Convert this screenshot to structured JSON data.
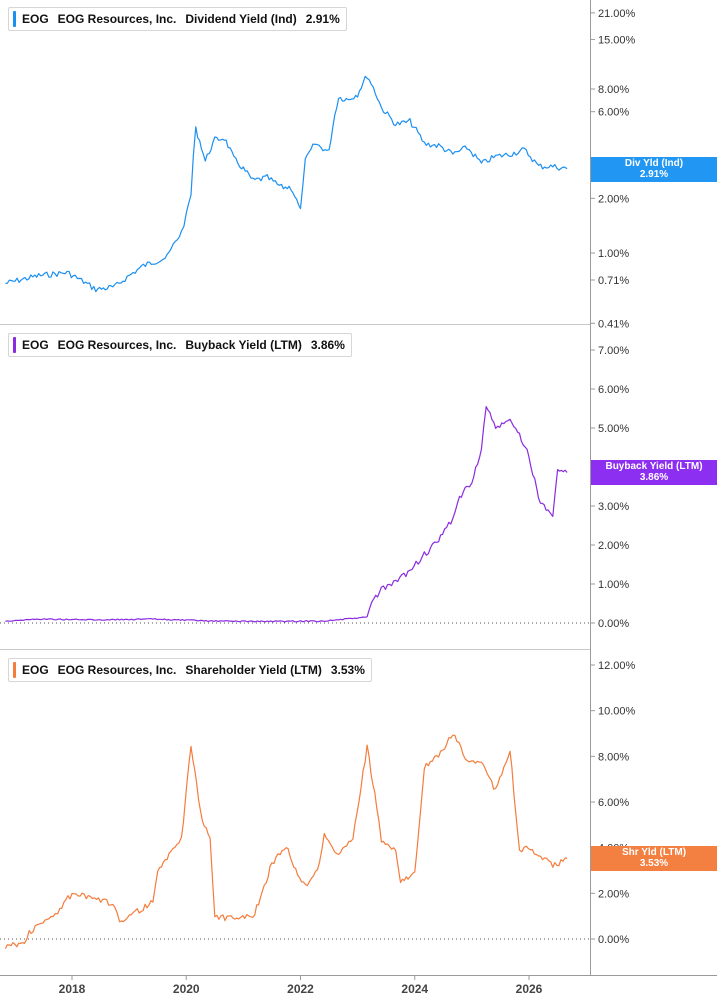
{
  "panels": [
    {
      "ticker": "EOG",
      "company": "EOG Resources, Inc.",
      "metric": "Dividend Yield (Ind)",
      "value": "2.91%",
      "tag_label": "Div Yld (Ind)",
      "tag_value": "2.91%",
      "color": "#1b8ff2",
      "tag_color": "#2196f3"
    },
    {
      "ticker": "EOG",
      "company": "EOG Resources, Inc.",
      "metric": "Buyback Yield (LTM)",
      "value": "3.86%",
      "tag_label": "Buyback Yield (LTM)",
      "tag_value": "3.86%",
      "color": "#8a2be2",
      "tag_color": "#8c2ff0"
    },
    {
      "ticker": "EOG",
      "company": "EOG Resources, Inc.",
      "metric": "Shareholder Yield (LTM)",
      "value": "3.53%",
      "tag_label": "Shr Yld (LTM)",
      "tag_value": "3.53%",
      "color": "#f47c3c",
      "tag_color": "#f37f40"
    }
  ],
  "chart_data": [
    {
      "type": "line",
      "title": "EOG  EOG Resources, Inc.  Dividend Yield (Ind)  2.91%",
      "series_label": "Dividend Yield (Ind)",
      "y_scale": "log",
      "y_ticks": [
        "21.00%",
        "15.00%",
        "8.00%",
        "6.00%",
        "2.00%",
        "1.00%",
        "0.71%",
        "0.41%"
      ],
      "y_tick_values": [
        21,
        15,
        8,
        6,
        2,
        1,
        0.71,
        0.41
      ],
      "x": [
        "2016-11",
        "2017-06",
        "2017-12",
        "2018-06",
        "2018-10",
        "2019-04",
        "2019-09",
        "2019-12",
        "2020-01",
        "2020-02",
        "2020-03",
        "2020-05",
        "2020-07",
        "2020-09",
        "2020-11",
        "2021-03",
        "2021-06",
        "2021-09",
        "2021-11",
        "2022-01",
        "2022-02",
        "2022-04",
        "2022-07",
        "2022-09",
        "2022-11",
        "2023-01",
        "2023-03",
        "2023-06",
        "2023-09",
        "2023-12",
        "2024-03",
        "2024-06",
        "2024-09",
        "2024-12",
        "2025-03",
        "2025-06",
        "2025-09",
        "2025-12",
        "2026-03",
        "2026-06",
        "2026-09"
      ],
      "y": [
        0.68,
        0.75,
        0.78,
        0.63,
        0.65,
        0.85,
        0.95,
        1.3,
        1.6,
        2.1,
        4.8,
        3.2,
        4.2,
        4.3,
        3.3,
        2.5,
        2.6,
        2.3,
        2.3,
        1.7,
        3.2,
        4.0,
        3.6,
        7.2,
        7.0,
        7.5,
        9.5,
        6.3,
        5.1,
        5.3,
        4.0,
        3.9,
        3.5,
        3.8,
        3.1,
        3.4,
        3.5,
        3.7,
        3.0,
        3.0,
        2.91
      ]
    },
    {
      "type": "line",
      "title": "EOG  EOG Resources, Inc.  Buyback Yield (LTM)  3.86%",
      "series_label": "Buyback Yield (LTM)",
      "ylim": [
        0,
        7
      ],
      "y_ticks": [
        "7.00%",
        "6.00%",
        "5.00%",
        "4.00%",
        "3.00%",
        "2.00%",
        "1.00%",
        "0.00%"
      ],
      "x": [
        "2016-11",
        "2017-06",
        "2018-06",
        "2019-06",
        "2020-06",
        "2021-06",
        "2022-06",
        "2023-03",
        "2023-04",
        "2023-06",
        "2023-09",
        "2023-12",
        "2024-03",
        "2024-06",
        "2024-09",
        "2024-10",
        "2024-12",
        "2025-01",
        "2025-03",
        "2025-04",
        "2025-06",
        "2025-09",
        "2025-11",
        "2026-01",
        "2026-03",
        "2026-05",
        "2026-06",
        "2026-07",
        "2026-09"
      ],
      "y": [
        0.05,
        0.1,
        0.08,
        0.1,
        0.05,
        0.04,
        0.05,
        0.15,
        0.55,
        0.85,
        1.05,
        1.35,
        1.75,
        2.1,
        2.7,
        3.1,
        3.5,
        3.55,
        4.5,
        5.55,
        5.0,
        5.2,
        4.8,
        4.3,
        3.2,
        2.85,
        2.8,
        4.0,
        3.86
      ]
    },
    {
      "type": "line",
      "title": "EOG  EOG Resources, Inc.  Shareholder Yield (LTM)  3.53%",
      "series_label": "Shareholder Yield (LTM)",
      "ylim": [
        -1.5,
        12.5
      ],
      "y_ticks": [
        "12.00%",
        "10.00%",
        "8.00%",
        "6.00%",
        "4.00%",
        "2.00%",
        "0.00%"
      ],
      "x": [
        "2016-11",
        "2017-03",
        "2017-04",
        "2017-09",
        "2017-10",
        "2018-01",
        "2018-10",
        "2018-11",
        "2019-06",
        "2019-07",
        "2019-11",
        "2019-12",
        "2020-02",
        "2020-04",
        "2020-06",
        "2020-07",
        "2020-10",
        "2020-12",
        "2021-03",
        "2021-07",
        "2021-10",
        "2021-12",
        "2022-02",
        "2022-05",
        "2022-06",
        "2022-09",
        "2022-12",
        "2023-03",
        "2023-05",
        "2023-06",
        "2023-09",
        "2023-10",
        "2023-12",
        "2024-01",
        "2024-03",
        "2024-06",
        "2024-09",
        "2024-12",
        "2025-03",
        "2025-06",
        "2025-09",
        "2025-11",
        "2025-12",
        "2026-03",
        "2026-06",
        "2026-09"
      ],
      "y": [
        -0.3,
        -0.2,
        0.3,
        1.0,
        1.2,
        2.0,
        1.5,
        0.8,
        1.6,
        2.9,
        4.2,
        4.4,
        8.5,
        5.5,
        4.4,
        1.0,
        0.9,
        1.0,
        0.9,
        3.3,
        4.1,
        3.0,
        2.3,
        3.3,
        4.5,
        3.7,
        4.4,
        8.4,
        5.8,
        4.3,
        3.8,
        2.5,
        2.8,
        3.0,
        7.5,
        8.0,
        9.0,
        7.8,
        7.8,
        6.5,
        8.3,
        3.8,
        4.0,
        3.7,
        3.2,
        3.53
      ]
    }
  ],
  "x_axis": {
    "tick_labels": [
      "2018",
      "2020",
      "2022",
      "2024",
      "2026"
    ]
  }
}
